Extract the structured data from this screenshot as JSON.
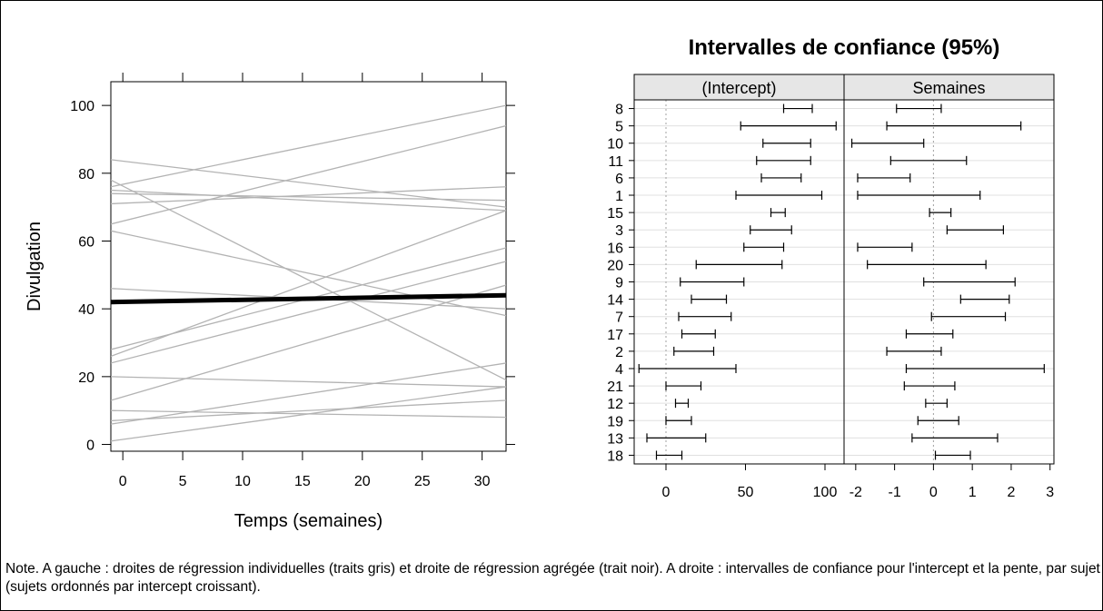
{
  "chart_data": [
    {
      "type": "line",
      "title": "",
      "xlabel": "Temps (semaines)",
      "ylabel": "Divulgation",
      "xlim": [
        -1,
        32
      ],
      "ylim": [
        -2,
        107
      ],
      "x_ticks": [
        0,
        5,
        10,
        15,
        20,
        25,
        30
      ],
      "y_ticks": [
        0,
        20,
        40,
        60,
        80,
        100
      ],
      "grid": false,
      "individual_lines_color": "#b3b3b3",
      "aggregate_line_color": "#000000",
      "individual_lines": [
        {
          "x": [
            -1,
            32
          ],
          "y": [
            84,
            70
          ]
        },
        {
          "x": [
            -1,
            32
          ],
          "y": [
            78,
            19
          ]
        },
        {
          "x": [
            -1,
            32
          ],
          "y": [
            76,
            100
          ]
        },
        {
          "x": [
            -1,
            32
          ],
          "y": [
            75,
            69
          ]
        },
        {
          "x": [
            -1,
            32
          ],
          "y": [
            74,
            72
          ]
        },
        {
          "x": [
            -1,
            32
          ],
          "y": [
            71,
            76
          ]
        },
        {
          "x": [
            -1,
            32
          ],
          "y": [
            65,
            94
          ]
        },
        {
          "x": [
            -1,
            32
          ],
          "y": [
            63,
            38
          ]
        },
        {
          "x": [
            -1,
            32
          ],
          "y": [
            46,
            40
          ]
        },
        {
          "x": [
            -1,
            32
          ],
          "y": [
            28,
            58
          ]
        },
        {
          "x": [
            -1,
            32
          ],
          "y": [
            26,
            69
          ]
        },
        {
          "x": [
            -1,
            32
          ],
          "y": [
            24,
            54
          ]
        },
        {
          "x": [
            -1,
            32
          ],
          "y": [
            20,
            17
          ]
        },
        {
          "x": [
            -1,
            32
          ],
          "y": [
            13,
            47
          ]
        },
        {
          "x": [
            -1,
            32
          ],
          "y": [
            10,
            8
          ]
        },
        {
          "x": [
            -1,
            32
          ],
          "y": [
            7,
            13
          ]
        },
        {
          "x": [
            -1,
            32
          ],
          "y": [
            6,
            24
          ]
        },
        {
          "x": [
            -1,
            32
          ],
          "y": [
            1,
            17
          ]
        }
      ],
      "aggregate_line": {
        "x": [
          -1,
          32
        ],
        "y": [
          42,
          44
        ]
      }
    },
    {
      "type": "interval",
      "title": "Intervalles de confiance (95%)",
      "categories": [
        "8",
        "5",
        "10",
        "11",
        "6",
        "1",
        "15",
        "3",
        "16",
        "20",
        "9",
        "14",
        "7",
        "17",
        "2",
        "4",
        "21",
        "12",
        "19",
        "13",
        "18"
      ],
      "panels": [
        {
          "name": "(Intercept)",
          "xlim": [
            -20,
            112
          ],
          "x_ticks": [
            0,
            50,
            100
          ],
          "reference": 0,
          "intervals": [
            [
              74,
              92
            ],
            [
              47,
              107
            ],
            [
              61,
              91
            ],
            [
              57,
              91
            ],
            [
              60,
              85
            ],
            [
              44,
              98
            ],
            [
              66,
              75
            ],
            [
              53,
              79
            ],
            [
              49,
              74
            ],
            [
              19,
              73
            ],
            [
              9,
              49
            ],
            [
              16,
              38
            ],
            [
              8,
              41
            ],
            [
              10,
              31
            ],
            [
              5,
              30
            ],
            [
              -17,
              44
            ],
            [
              0,
              22
            ],
            [
              6,
              14
            ],
            [
              0,
              16
            ],
            [
              -12,
              25
            ],
            [
              -6,
              10
            ]
          ]
        },
        {
          "name": "Semaines",
          "xlim": [
            -2.3,
            3.1
          ],
          "x_ticks": [
            -2,
            -1,
            0,
            1,
            2,
            3
          ],
          "reference": 0,
          "intervals": [
            [
              -0.95,
              0.2
            ],
            [
              -1.2,
              2.25
            ],
            [
              -2.1,
              -0.25
            ],
            [
              -1.1,
              0.85
            ],
            [
              -1.95,
              -0.6
            ],
            [
              -1.95,
              1.2
            ],
            [
              -0.1,
              0.45
            ],
            [
              0.35,
              1.8
            ],
            [
              -1.95,
              -0.55
            ],
            [
              -1.7,
              1.35
            ],
            [
              -0.25,
              2.1
            ],
            [
              0.7,
              1.95
            ],
            [
              -0.05,
              1.85
            ],
            [
              -0.7,
              0.5
            ],
            [
              -1.2,
              0.2
            ],
            [
              -0.7,
              2.85
            ],
            [
              -0.75,
              0.55
            ],
            [
              -0.2,
              0.35
            ],
            [
              -0.4,
              0.65
            ],
            [
              -0.55,
              1.65
            ],
            [
              0.05,
              0.95
            ]
          ]
        }
      ]
    }
  ],
  "note": "Note. A gauche : droites de régression individuelles (traits gris) et droite de régression agrégée (trait noir). A droite : intervalles de confiance pour l'intercept et la pente, par sujet (sujets ordonnés par intercept croissant)."
}
